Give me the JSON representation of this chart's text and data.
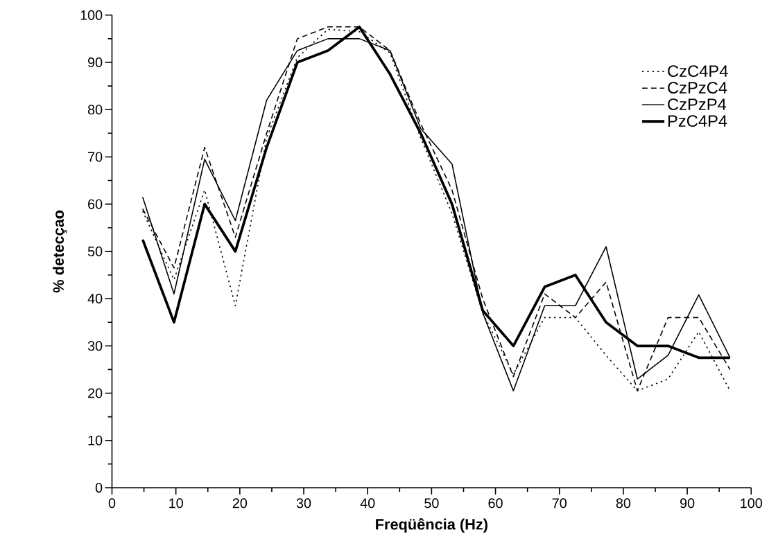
{
  "chart_data": {
    "type": "line",
    "xlabel": "Freqüência (Hz)",
    "ylabel": "% detecçao",
    "x": [
      4.8,
      9.7,
      14.5,
      19.3,
      24.2,
      29.0,
      33.8,
      38.7,
      43.5,
      48.3,
      53.2,
      58.0,
      62.8,
      67.7,
      72.5,
      77.3,
      82.2,
      87.0,
      91.8,
      96.7
    ],
    "series": [
      {
        "name": "CzC4P4",
        "color": "#000000",
        "line_style": "dotted",
        "values": [
          58.5,
          44,
          63,
          38.5,
          74,
          91,
          97,
          96.5,
          92,
          74,
          58,
          37,
          24,
          36,
          36,
          28,
          20.5,
          23,
          33,
          20.5
        ]
      },
      {
        "name": "CzPzC4",
        "color": "#000000",
        "line_style": "dashed",
        "values": [
          59,
          46.5,
          72,
          53,
          75,
          95,
          97.5,
          97.5,
          92.5,
          77,
          63,
          40,
          23.5,
          41,
          36,
          43.5,
          20.5,
          36,
          36,
          25
        ]
      },
      {
        "name": "CzPzP4",
        "color": "#000000",
        "line_style": "solid",
        "values": [
          61.5,
          41,
          69.5,
          56.5,
          82,
          92.5,
          95,
          95,
          92.5,
          76,
          68.5,
          37,
          20.5,
          38.5,
          38.5,
          51,
          23,
          28,
          40.8,
          27.5
        ]
      },
      {
        "name": "PzC4P4",
        "color": "#000000",
        "line_style": "solid",
        "values": [
          52.5,
          35,
          60,
          50,
          72,
          90,
          92.5,
          97.5,
          87.5,
          75,
          60,
          37.5,
          30,
          42.5,
          45,
          35,
          30,
          30,
          27.5,
          27.5
        ]
      }
    ],
    "xlim": [
      0,
      100
    ],
    "ylim": [
      0,
      100
    ],
    "xticks": [
      0,
      10,
      20,
      30,
      40,
      50,
      60,
      70,
      80,
      90,
      100
    ],
    "yticks": [
      0,
      10,
      20,
      30,
      40,
      50,
      60,
      70,
      80,
      90,
      100
    ],
    "grid": false,
    "legend": "top right",
    "marker": "none"
  }
}
